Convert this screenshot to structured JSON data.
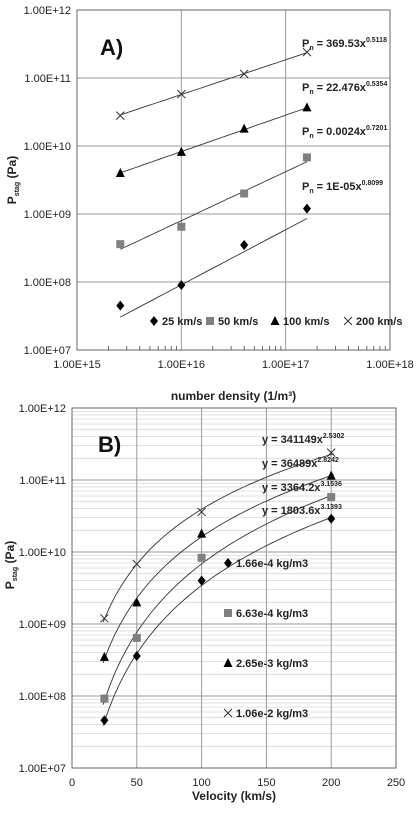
{
  "chart_data": [
    {
      "type": "scatter",
      "panel_label": "A)",
      "xlabel": "number density (1/m³)",
      "ylabel": "P",
      "ylabel_sub": "stag",
      "ylabel_unit": " (Pa)",
      "xscale": "log",
      "yscale": "log",
      "xlim": [
        1000000000000000.0,
        1e+18
      ],
      "ylim": [
        10000000.0,
        1000000000000.0
      ],
      "x_tick_labels": [
        "1.00E+15",
        "1.00E+16",
        "1.00E+17",
        "1.00E+18"
      ],
      "y_tick_labels": [
        "1.00E+07",
        "1.00E+08",
        "1.00E+09",
        "1.00E+10",
        "1.00E+11",
        "1.00E+12"
      ],
      "grid": true,
      "legend_position": "bottom",
      "series": [
        {
          "name": "25 km/s",
          "marker": "diamond",
          "x": [
            2600000000000000.0,
            1e+16,
            4e+16,
            1.6e+17
          ],
          "y": [
            45000000.0,
            90000000.0,
            350000000.0,
            1200000000.0
          ],
          "fit_label": "P",
          "fit_sub": "n",
          "fit_eq": " = 1E-05x",
          "fit_exp": "0.8099",
          "fit_a": 1e-05,
          "fit_b": 0.8099
        },
        {
          "name": "50 km/s",
          "marker": "square",
          "x": [
            2600000000000000.0,
            1e+16,
            4e+16,
            1.6e+17
          ],
          "y": [
            360000000.0,
            650000000.0,
            2000000000.0,
            6800000000.0
          ],
          "fit_label": "P",
          "fit_sub": "n",
          "fit_eq": " = 0.0024x",
          "fit_exp": "0.7201",
          "fit_a": 0.0024,
          "fit_b": 0.7201
        },
        {
          "name": "100 km/s",
          "marker": "triangle",
          "x": [
            2600000000000000.0,
            1e+16,
            4e+16,
            1.6e+17
          ],
          "y": [
            4000000000.0,
            8200000000.0,
            18000000000.0,
            37000000000.0
          ],
          "fit_label": "P",
          "fit_sub": "n",
          "fit_eq": " = 22.476x",
          "fit_exp": "0.5354",
          "fit_a": 22.476,
          "fit_b": 0.5354
        },
        {
          "name": "200 km/s",
          "marker": "x",
          "x": [
            2600000000000000.0,
            1e+16,
            4e+16,
            1.6e+17
          ],
          "y": [
            28000000000.0,
            58000000000.0,
            115000000000.0,
            240000000000.0
          ],
          "fit_label": "P",
          "fit_sub": "n",
          "fit_eq": " = 369.53x",
          "fit_exp": "0.5118",
          "fit_a": 369.53,
          "fit_b": 0.5118
        }
      ]
    },
    {
      "type": "scatter",
      "panel_label": "B)",
      "xlabel": "Velocity (km/s)",
      "ylabel": "P",
      "ylabel_sub": "stag",
      "ylabel_unit": " (Pa)",
      "xscale": "linear",
      "yscale": "log",
      "xlim": [
        0,
        250
      ],
      "ylim": [
        10000000.0,
        1000000000000.0
      ],
      "x_tick_labels": [
        "0",
        "50",
        "100",
        "150",
        "200",
        "250"
      ],
      "y_tick_labels": [
        "1.00E+07",
        "1.00E+08",
        "1.00E+09",
        "1.00E+10",
        "1.00E+11",
        "1.00E+12"
      ],
      "grid": true,
      "legend_position": "right",
      "series": [
        {
          "name": "1.66e-4 kg/m3",
          "marker": "diamond",
          "x": [
            25,
            50,
            100,
            200
          ],
          "y": [
            46000000.0,
            360000000.0,
            4000000000.0,
            29000000000.0
          ],
          "fit_label": "y",
          "fit_eq": " = 1803.6x",
          "fit_exp": "3.1393",
          "fit_a": 1803.6,
          "fit_b": 3.1393
        },
        {
          "name": "6.63e-4 kg/m3",
          "marker": "square",
          "x": [
            25,
            50,
            100,
            200
          ],
          "y": [
            92000000.0,
            640000000.0,
            8300000000.0,
            58000000000.0
          ],
          "fit_label": "y",
          "fit_eq": " = 3364.2x",
          "fit_exp": "3.1536",
          "fit_a": 3364.2,
          "fit_b": 3.1536
        },
        {
          "name": "2.65e-3 kg/m3",
          "marker": "triangle",
          "x": [
            25,
            50,
            100,
            200
          ],
          "y": [
            350000000.0,
            2000000000.0,
            18000000000.0,
            115000000000.0
          ],
          "fit_label": "y",
          "fit_eq": " = 36489x",
          "fit_exp": "2.8242",
          "fit_a": 36489,
          "fit_b": 2.8242
        },
        {
          "name": "1.06e-2 kg/m3",
          "marker": "x",
          "x": [
            25,
            50,
            100,
            200
          ],
          "y": [
            1200000000.0,
            6800000000.0,
            36000000000.0,
            240000000000.0
          ],
          "fit_label": "y",
          "fit_eq": " = 341149x",
          "fit_exp": "2.5302",
          "fit_a": 341149,
          "fit_b": 2.5302
        }
      ]
    }
  ]
}
